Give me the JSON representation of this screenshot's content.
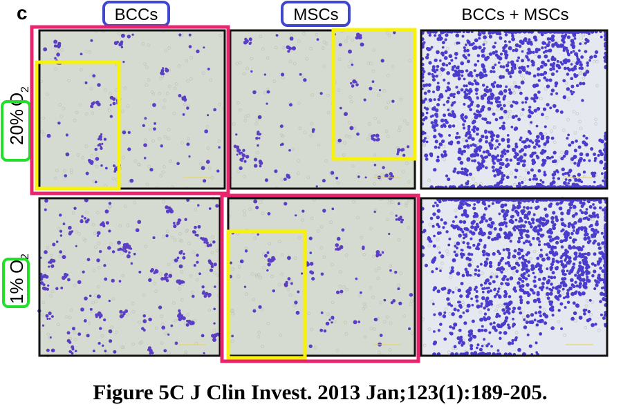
{
  "figure": {
    "panel_letter": "c",
    "columns": [
      "BCCs",
      "MSCs",
      "BCCs + MSCs"
    ],
    "rows": [
      {
        "percent": "20%",
        "gas": "O",
        "subscript": "2"
      },
      {
        "percent": "1%",
        "gas": "O",
        "subscript": "2"
      }
    ],
    "caption": "Figure 5C J Clin Invest. 2013 Jan;123(1):189-205."
  }
}
